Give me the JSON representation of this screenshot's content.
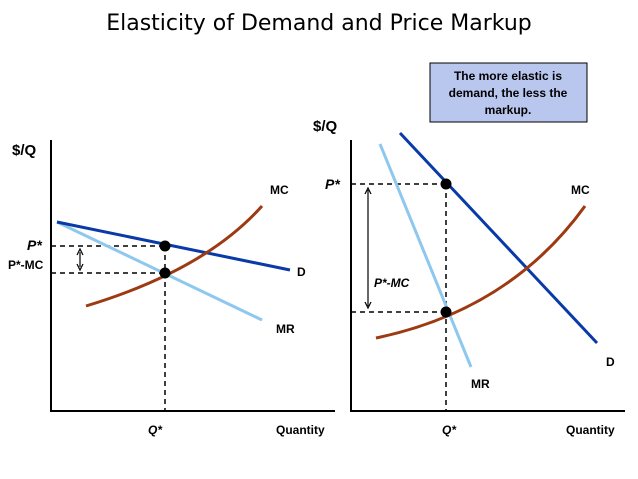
{
  "title": "Elasticity of Demand and Price Markup",
  "note": {
    "lines": [
      "The more elastic is",
      "demand, the less the",
      "markup."
    ],
    "background": "#b9c6ee"
  },
  "left_panel": {
    "y_axis_label": "$/Q",
    "x_axis_label": "Quantity",
    "q_label": "Q*",
    "p_label": "P*",
    "markup_label": "P*-MC",
    "mc_label": "MC",
    "d_label": "D",
    "mr_label": "MR"
  },
  "right_panel": {
    "y_axis_label": "$/Q",
    "x_axis_label": "Quantity",
    "q_label": "Q*",
    "p_label": "P*",
    "markup_label": "P*-MC",
    "mc_label": "MC",
    "d_label": "D",
    "mr_label": "MR"
  },
  "colors": {
    "demand": "#0a3aa8",
    "marginal_revenue": "#8ec8ee",
    "marginal_cost": "#9e3a12"
  }
}
